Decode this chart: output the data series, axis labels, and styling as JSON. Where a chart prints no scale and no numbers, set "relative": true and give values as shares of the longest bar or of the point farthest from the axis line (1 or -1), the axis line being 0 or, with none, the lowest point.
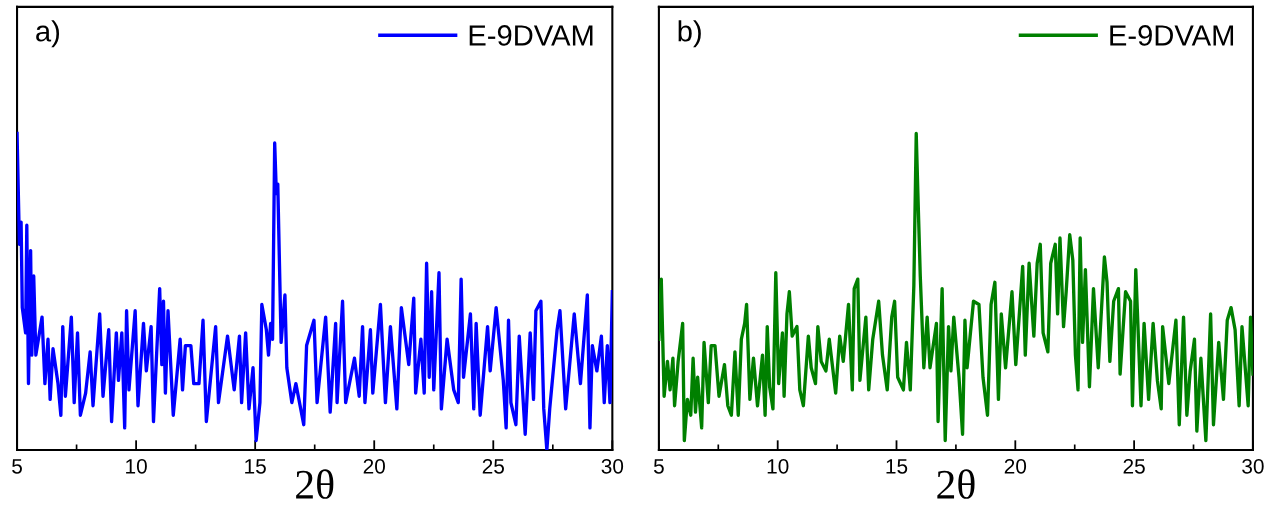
{
  "chart_data": [
    {
      "type": "line",
      "title": "a)",
      "xlabel": "2θ",
      "relative": true,
      "legend": "top right",
      "grid": false,
      "tick_labels": "x",
      "xlim": [
        5,
        30
      ],
      "xticks": [
        5,
        10,
        15,
        20,
        25,
        30
      ],
      "series": [
        {
          "name": "E-9DVAM",
          "color": "#0000ff",
          "x": [
            5.0,
            5.1,
            5.17,
            5.22,
            5.36,
            5.41,
            5.48,
            5.57,
            5.62,
            5.7,
            5.79,
            6.05,
            6.17,
            6.3,
            6.39,
            6.51,
            6.72,
            6.84,
            6.92,
            7.03,
            7.28,
            7.4,
            7.54,
            7.66,
            7.88,
            8.07,
            8.19,
            8.47,
            8.61,
            8.85,
            8.97,
            9.17,
            9.26,
            9.4,
            9.52,
            9.6,
            9.7,
            9.96,
            10.08,
            10.31,
            10.43,
            10.63,
            10.73,
            10.99,
            11.08,
            11.15,
            11.23,
            11.34,
            11.56,
            11.85,
            11.95,
            12.07,
            12.3,
            12.42,
            12.64,
            12.81,
            12.95,
            13.34,
            13.46,
            13.84,
            14.12,
            14.34,
            14.43,
            14.6,
            14.74,
            14.91,
            15.04,
            15.2,
            15.28,
            15.47,
            15.56,
            15.65,
            15.73,
            15.82,
            15.89,
            15.95,
            16.09,
            16.25,
            16.33,
            16.54,
            16.71,
            17.04,
            17.16,
            17.47,
            17.6,
            17.96,
            18.15,
            18.38,
            18.44,
            18.67,
            18.8,
            19.17,
            19.37,
            19.51,
            19.61,
            19.84,
            19.94,
            20.26,
            20.47,
            20.68,
            20.95,
            21.14,
            21.45,
            21.66,
            21.74,
            21.96,
            22.1,
            22.2,
            22.31,
            22.41,
            22.5,
            22.72,
            22.82,
            23.06,
            23.34,
            23.53,
            23.65,
            23.75,
            24.04,
            24.18,
            24.28,
            24.45,
            24.76,
            24.87,
            25.12,
            25.42,
            25.54,
            25.64,
            25.74,
            25.95,
            26.09,
            26.34,
            26.55,
            26.69,
            26.79,
            27.0,
            27.12,
            27.25,
            27.37,
            27.68,
            27.8,
            28.04,
            28.4,
            28.66,
            28.95,
            29.06,
            29.16,
            29.35,
            29.54,
            29.66,
            29.79,
            29.9,
            30.0
          ],
          "values": [
            1.0,
            0.65,
            0.72,
            0.45,
            0.37,
            0.71,
            0.21,
            0.63,
            0.3,
            0.55,
            0.3,
            0.42,
            0.21,
            0.35,
            0.16,
            0.32,
            0.21,
            0.11,
            0.39,
            0.17,
            0.42,
            0.15,
            0.37,
            0.11,
            0.18,
            0.31,
            0.14,
            0.43,
            0.17,
            0.38,
            0.09,
            0.37,
            0.22,
            0.37,
            0.07,
            0.44,
            0.19,
            0.44,
            0.14,
            0.4,
            0.25,
            0.39,
            0.09,
            0.51,
            0.27,
            0.47,
            0.18,
            0.44,
            0.11,
            0.35,
            0.19,
            0.33,
            0.33,
            0.21,
            0.21,
            0.41,
            0.09,
            0.39,
            0.15,
            0.36,
            0.19,
            0.36,
            0.15,
            0.37,
            0.13,
            0.26,
            0.03,
            0.15,
            0.46,
            0.38,
            0.3,
            0.4,
            0.35,
            0.97,
            0.81,
            0.84,
            0.34,
            0.49,
            0.26,
            0.15,
            0.21,
            0.08,
            0.33,
            0.41,
            0.15,
            0.42,
            0.12,
            0.4,
            0.15,
            0.47,
            0.15,
            0.29,
            0.17,
            0.39,
            0.15,
            0.38,
            0.18,
            0.46,
            0.15,
            0.39,
            0.13,
            0.45,
            0.27,
            0.48,
            0.18,
            0.35,
            0.18,
            0.59,
            0.23,
            0.5,
            0.19,
            0.56,
            0.13,
            0.35,
            0.19,
            0.15,
            0.54,
            0.23,
            0.43,
            0.13,
            0.4,
            0.11,
            0.39,
            0.25,
            0.45,
            0.22,
            0.07,
            0.41,
            0.15,
            0.08,
            0.36,
            0.05,
            0.37,
            0.16,
            0.44,
            0.47,
            0.13,
            0.0,
            0.13,
            0.38,
            0.44,
            0.13,
            0.43,
            0.21,
            0.49,
            0.07,
            0.33,
            0.25,
            0.36,
            0.15,
            0.33,
            0.15,
            0.5
          ]
        }
      ]
    },
    {
      "type": "line",
      "title": "b)",
      "xlabel": "2θ",
      "relative": true,
      "legend": "top right",
      "grid": false,
      "tick_labels": "x",
      "xlim": [
        5,
        30
      ],
      "xticks": [
        5,
        10,
        15,
        20,
        25,
        30
      ],
      "series": [
        {
          "name": "E-9DVAM",
          "color": "#008000",
          "x": [
            5.0,
            5.1,
            5.22,
            5.36,
            5.47,
            5.59,
            5.66,
            5.81,
            6.0,
            6.07,
            6.2,
            6.34,
            6.44,
            6.54,
            6.63,
            6.8,
            6.9,
            7.08,
            7.2,
            7.36,
            7.53,
            7.76,
            7.9,
            8.05,
            8.2,
            8.34,
            8.47,
            8.61,
            8.69,
            8.83,
            8.98,
            9.15,
            9.36,
            9.47,
            9.56,
            9.66,
            9.8,
            9.92,
            10.04,
            10.2,
            10.27,
            10.39,
            10.49,
            10.61,
            10.81,
            10.93,
            11.08,
            11.29,
            11.41,
            11.59,
            11.69,
            11.83,
            12.03,
            12.17,
            12.44,
            12.61,
            12.76,
            12.98,
            13.14,
            13.22,
            13.37,
            13.46,
            13.71,
            13.83,
            14.0,
            14.25,
            14.41,
            14.61,
            14.8,
            14.92,
            15.05,
            15.29,
            15.42,
            15.58,
            15.73,
            15.83,
            15.9,
            16.0,
            16.15,
            16.29,
            16.41,
            16.68,
            16.75,
            16.92,
            17.05,
            17.19,
            17.29,
            17.41,
            17.63,
            17.78,
            17.88,
            17.97,
            18.24,
            18.47,
            18.64,
            18.83,
            18.98,
            19.14,
            19.29,
            19.41,
            19.59,
            19.86,
            20.02,
            20.31,
            20.42,
            20.58,
            20.78,
            20.92,
            21.05,
            21.17,
            21.37,
            21.49,
            21.68,
            21.78,
            21.88,
            22.03,
            22.14,
            22.29,
            22.42,
            22.53,
            22.64,
            22.73,
            22.83,
            22.95,
            23.12,
            23.29,
            23.49,
            23.75,
            23.86,
            23.98,
            24.14,
            24.34,
            24.41,
            24.64,
            24.85,
            24.93,
            25.07,
            25.29,
            25.42,
            25.61,
            25.8,
            25.98,
            26.14,
            26.2,
            26.46,
            26.76,
            26.9,
            27.08,
            27.22,
            27.36,
            27.54,
            27.64,
            27.81,
            28.02,
            28.22,
            28.34,
            28.56,
            28.76,
            28.92,
            29.08,
            29.25,
            29.42,
            29.54,
            29.8,
            29.9,
            30.0
          ],
          "values": [
            0.35,
            0.54,
            0.17,
            0.28,
            0.19,
            0.29,
            0.14,
            0.28,
            0.4,
            0.03,
            0.16,
            0.11,
            0.29,
            0.12,
            0.23,
            0.07,
            0.34,
            0.15,
            0.33,
            0.33,
            0.17,
            0.27,
            0.14,
            0.11,
            0.31,
            0.11,
            0.35,
            0.4,
            0.46,
            0.16,
            0.29,
            0.14,
            0.3,
            0.11,
            0.39,
            0.2,
            0.13,
            0.56,
            0.21,
            0.37,
            0.17,
            0.43,
            0.5,
            0.36,
            0.39,
            0.19,
            0.14,
            0.36,
            0.26,
            0.21,
            0.39,
            0.28,
            0.25,
            0.35,
            0.18,
            0.36,
            0.28,
            0.46,
            0.19,
            0.51,
            0.54,
            0.22,
            0.42,
            0.19,
            0.35,
            0.47,
            0.3,
            0.19,
            0.42,
            0.47,
            0.23,
            0.19,
            0.34,
            0.19,
            0.52,
            1.0,
            0.81,
            0.55,
            0.26,
            0.42,
            0.26,
            0.4,
            0.09,
            0.51,
            0.03,
            0.39,
            0.25,
            0.42,
            0.23,
            0.05,
            0.41,
            0.26,
            0.47,
            0.46,
            0.23,
            0.11,
            0.46,
            0.53,
            0.16,
            0.43,
            0.26,
            0.5,
            0.27,
            0.58,
            0.3,
            0.59,
            0.36,
            0.59,
            0.65,
            0.37,
            0.31,
            0.59,
            0.65,
            0.43,
            0.67,
            0.39,
            0.5,
            0.68,
            0.6,
            0.3,
            0.19,
            0.67,
            0.34,
            0.57,
            0.2,
            0.51,
            0.26,
            0.61,
            0.53,
            0.28,
            0.47,
            0.51,
            0.24,
            0.5,
            0.47,
            0.14,
            0.57,
            0.14,
            0.4,
            0.16,
            0.4,
            0.22,
            0.13,
            0.39,
            0.21,
            0.41,
            0.08,
            0.42,
            0.11,
            0.25,
            0.35,
            0.06,
            0.29,
            0.03,
            0.43,
            0.08,
            0.34,
            0.16,
            0.41,
            0.45,
            0.38,
            0.14,
            0.39,
            0.14,
            0.42,
            0.24
          ]
        }
      ]
    }
  ]
}
